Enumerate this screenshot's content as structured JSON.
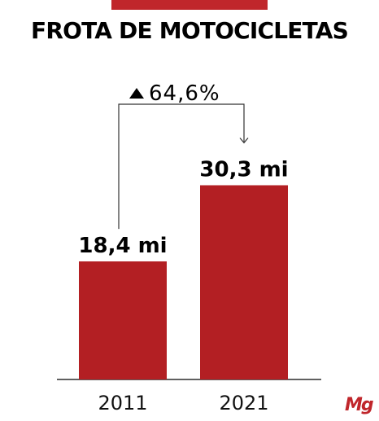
{
  "header": {
    "title": "FROTA DE MOTOCICLETAS"
  },
  "colors": {
    "bar": "#b31f23",
    "accent": "#c0262b",
    "logo": "#c0262b"
  },
  "chart_data": {
    "type": "bar",
    "categories": [
      "2011",
      "2021"
    ],
    "values": [
      18.4,
      30.3
    ],
    "value_labels": [
      "18,4 mi",
      "30,3 mi"
    ],
    "change_label": "64,6%",
    "change_direction": "up",
    "title": "FROTA DE MOTOCICLETAS",
    "xlabel": "",
    "ylabel": "",
    "ylim": [
      0,
      37.2
    ],
    "grid": false,
    "legend": "none"
  },
  "logo": {
    "text": "Mg"
  }
}
